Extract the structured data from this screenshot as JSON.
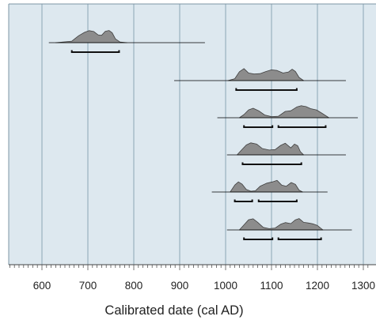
{
  "chart_data": {
    "type": "area",
    "title": "",
    "xlabel": "Calibrated date (cal AD)",
    "ylabel": "",
    "xlim": [
      530,
      1310
    ],
    "xticks": [
      600,
      700,
      800,
      900,
      1000,
      1100,
      1200,
      1300
    ],
    "xtick_labels": [
      "600",
      "700",
      "800",
      "900",
      "1000",
      "1100",
      "1200",
      "1300"
    ],
    "minor_tick_step": 10,
    "grid": true,
    "legend": "none",
    "colors": {
      "plot_background": "#dde8ef",
      "gridline": "#8aa6b6",
      "frame": "#7d96a4",
      "distribution_fill": "#8c8c8c",
      "distribution_stroke": "#3f3f3f",
      "range_line": "#000000",
      "bracket": "#111111"
    },
    "samples": [
      {
        "line": [
          615,
          955
        ],
        "brackets": [
          [
            665,
            768
          ]
        ],
        "density": [
          [
            630,
            0
          ],
          [
            665,
            0.12
          ],
          [
            680,
            0.55
          ],
          [
            693,
            0.82
          ],
          [
            703,
            0.95
          ],
          [
            713,
            0.88
          ],
          [
            722,
            0.62
          ],
          [
            730,
            0.58
          ],
          [
            738,
            0.9
          ],
          [
            746,
            0.96
          ],
          [
            753,
            0.78
          ],
          [
            760,
            0.3
          ],
          [
            770,
            0.05
          ],
          [
            785,
            0
          ]
        ]
      },
      {
        "line": [
          888,
          1262
        ],
        "brackets": [
          [
            1023,
            1155
          ]
        ],
        "density": [
          [
            1005,
            0
          ],
          [
            1020,
            0.15
          ],
          [
            1030,
            0.7
          ],
          [
            1040,
            0.95
          ],
          [
            1050,
            0.6
          ],
          [
            1062,
            0.52
          ],
          [
            1075,
            0.55
          ],
          [
            1088,
            0.72
          ],
          [
            1100,
            0.85
          ],
          [
            1112,
            0.8
          ],
          [
            1125,
            0.6
          ],
          [
            1137,
            0.68
          ],
          [
            1145,
            0.9
          ],
          [
            1152,
            0.72
          ],
          [
            1160,
            0.25
          ],
          [
            1170,
            0
          ]
        ]
      },
      {
        "line": [
          982,
          1288
        ],
        "brackets": [
          [
            1040,
            1102
          ],
          [
            1115,
            1218
          ]
        ],
        "density": [
          [
            1030,
            0
          ],
          [
            1040,
            0.25
          ],
          [
            1050,
            0.62
          ],
          [
            1060,
            0.75
          ],
          [
            1072,
            0.55
          ],
          [
            1085,
            0.22
          ],
          [
            1100,
            0.08
          ],
          [
            1115,
            0.12
          ],
          [
            1130,
            0.5
          ],
          [
            1142,
            0.55
          ],
          [
            1155,
            0.85
          ],
          [
            1165,
            0.95
          ],
          [
            1175,
            0.88
          ],
          [
            1185,
            0.72
          ],
          [
            1198,
            0.62
          ],
          [
            1210,
            0.35
          ],
          [
            1225,
            0
          ]
        ]
      },
      {
        "line": [
          1003,
          1262
        ],
        "brackets": [
          [
            1037,
            1165
          ]
        ],
        "density": [
          [
            1025,
            0
          ],
          [
            1035,
            0.4
          ],
          [
            1045,
            0.78
          ],
          [
            1055,
            0.95
          ],
          [
            1068,
            0.85
          ],
          [
            1080,
            0.5
          ],
          [
            1095,
            0.38
          ],
          [
            1108,
            0.42
          ],
          [
            1120,
            0.75
          ],
          [
            1130,
            0.92
          ],
          [
            1142,
            0.55
          ],
          [
            1150,
            0.85
          ],
          [
            1157,
            0.72
          ],
          [
            1163,
            0.25
          ],
          [
            1170,
            0
          ]
        ]
      },
      {
        "line": [
          970,
          1222
        ],
        "brackets": [
          [
            1020,
            1058
          ],
          [
            1072,
            1155
          ]
        ],
        "density": [
          [
            1010,
            0
          ],
          [
            1020,
            0.55
          ],
          [
            1028,
            0.8
          ],
          [
            1036,
            0.62
          ],
          [
            1045,
            0.2
          ],
          [
            1055,
            0.06
          ],
          [
            1065,
            0.1
          ],
          [
            1075,
            0.45
          ],
          [
            1090,
            0.7
          ],
          [
            1102,
            0.8
          ],
          [
            1112,
            0.92
          ],
          [
            1122,
            0.55
          ],
          [
            1132,
            0.45
          ],
          [
            1143,
            0.75
          ],
          [
            1152,
            0.6
          ],
          [
            1160,
            0.15
          ],
          [
            1168,
            0
          ]
        ]
      },
      {
        "line": [
          1003,
          1275
        ],
        "brackets": [
          [
            1040,
            1102
          ],
          [
            1115,
            1208
          ]
        ],
        "density": [
          [
            1030,
            0
          ],
          [
            1040,
            0.4
          ],
          [
            1050,
            0.8
          ],
          [
            1060,
            0.88
          ],
          [
            1070,
            0.6
          ],
          [
            1082,
            0.2
          ],
          [
            1095,
            0.1
          ],
          [
            1108,
            0.15
          ],
          [
            1120,
            0.45
          ],
          [
            1130,
            0.58
          ],
          [
            1142,
            0.5
          ],
          [
            1152,
            0.8
          ],
          [
            1160,
            0.9
          ],
          [
            1170,
            0.6
          ],
          [
            1180,
            0.55
          ],
          [
            1190,
            0.48
          ],
          [
            1200,
            0.35
          ],
          [
            1212,
            0
          ]
        ]
      }
    ]
  }
}
